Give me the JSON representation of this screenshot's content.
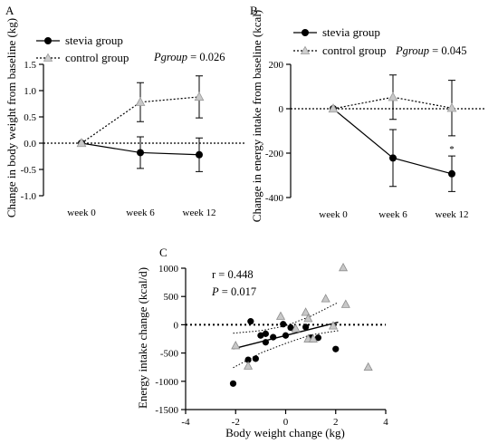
{
  "chart_data": [
    {
      "panel": "A",
      "type": "line",
      "ylabel": "Change in body weight from baseline (kg)",
      "xlabel": "",
      "categories": [
        "week 0",
        "week 6",
        "week 12"
      ],
      "ylim": [
        -1.0,
        1.5
      ],
      "yticks": [
        "-1.0",
        "-0.5",
        "0.0",
        "0.5",
        "1.0",
        "1.5"
      ],
      "yticks_num": [
        -1.0,
        -0.5,
        0.0,
        0.5,
        1.0,
        1.5
      ],
      "reference_line": 0,
      "stat": {
        "prefix": "P",
        "italic": "group",
        "suffix": " = 0.026"
      },
      "legend_position": "top-left",
      "series": [
        {
          "name": "stevia group",
          "marker": "circle",
          "color": "#000000",
          "line": "solid",
          "values": [
            0.0,
            -0.18,
            -0.22
          ],
          "err": [
            0,
            0.3,
            0.32
          ],
          "starred": [
            false,
            false,
            false
          ]
        },
        {
          "name": "control group",
          "marker": "triangle",
          "color": "#c8c8c8",
          "line": "dotted",
          "values": [
            0.0,
            0.78,
            0.88
          ],
          "err": [
            0,
            0.37,
            0.4
          ],
          "starred": [
            false,
            false,
            false
          ]
        }
      ]
    },
    {
      "panel": "B",
      "type": "line",
      "ylabel": "Change in energy intake from baseline (kcal)",
      "xlabel": "",
      "categories": [
        "week 0",
        "week 6",
        "week 12"
      ],
      "ylim": [
        -400,
        200
      ],
      "yticks": [
        "-400",
        "-200",
        "0",
        "200"
      ],
      "yticks_num": [
        -400,
        -200,
        0,
        200
      ],
      "reference_line": 0,
      "stat": {
        "prefix": "P",
        "italic": "group",
        "suffix": " = 0.045"
      },
      "legend_position": "top-left",
      "series": [
        {
          "name": "stevia group",
          "marker": "circle",
          "color": "#000000",
          "line": "solid",
          "values": [
            0,
            -222,
            -293
          ],
          "err": [
            0,
            128,
            80
          ],
          "starred": [
            false,
            false,
            true
          ]
        },
        {
          "name": "control group",
          "marker": "triangle",
          "color": "#c8c8c8",
          "line": "dotted",
          "values": [
            0,
            52,
            3
          ],
          "err": [
            0,
            100,
            125
          ],
          "starred": [
            false,
            false,
            false
          ]
        }
      ]
    },
    {
      "panel": "C",
      "type": "scatter",
      "xlabel": "Body weight change (kg)",
      "ylabel": "Energy intake change (kcal/d)",
      "xlim": [
        -4,
        4
      ],
      "ylim": [
        -1500,
        1000
      ],
      "xticks": [
        "-4",
        "-2",
        "0",
        "2",
        "4"
      ],
      "xticks_num": [
        -4,
        -2,
        0,
        2,
        4
      ],
      "yticks": [
        "-1500",
        "-1000",
        "-500",
        "0",
        "500",
        "1000"
      ],
      "yticks_num": [
        -1500,
        -1000,
        -500,
        0,
        500,
        1000
      ],
      "reference_line": 0,
      "annotation_r": "r = 0.448",
      "annotation_p": {
        "italic": "P",
        "suffix": " = 0.017"
      },
      "regression": {
        "slope": 112,
        "intercept": -190,
        "x_range": [
          -2.1,
          2.1
        ]
      },
      "ci_band": {
        "upper": [
          [
            -2.1,
            -150
          ],
          [
            -1.0,
            -105
          ],
          [
            0.0,
            -20
          ],
          [
            1.0,
            150
          ],
          [
            2.1,
            395
          ]
        ],
        "lower": [
          [
            -2.1,
            -760
          ],
          [
            -1.0,
            -500
          ],
          [
            0.0,
            -330
          ],
          [
            1.0,
            -180
          ],
          [
            2.1,
            -105
          ]
        ]
      },
      "series": [
        {
          "name": "stevia",
          "marker": "circle",
          "color": "#000000",
          "points": [
            [
              -2.1,
              -1040
            ],
            [
              -1.5,
              -620
            ],
            [
              -1.4,
              60
            ],
            [
              -1.2,
              -600
            ],
            [
              -1.0,
              -190
            ],
            [
              -0.8,
              -160
            ],
            [
              -0.8,
              -310
            ],
            [
              -0.5,
              -220
            ],
            [
              -0.1,
              10
            ],
            [
              0.0,
              -190
            ],
            [
              0.2,
              -50
            ],
            [
              0.8,
              -40
            ],
            [
              1.0,
              -230
            ],
            [
              1.3,
              -230
            ],
            [
              2.0,
              -430
            ]
          ]
        },
        {
          "name": "control",
          "marker": "triangle",
          "color": "#c8c8c8",
          "points": [
            [
              -2.0,
              -370
            ],
            [
              -1.5,
              -730
            ],
            [
              -0.2,
              150
            ],
            [
              0.4,
              -70
            ],
            [
              0.8,
              220
            ],
            [
              0.9,
              110
            ],
            [
              0.9,
              -250
            ],
            [
              1.1,
              -250
            ],
            [
              1.6,
              460
            ],
            [
              1.9,
              -20
            ],
            [
              2.3,
              1010
            ],
            [
              2.4,
              360
            ],
            [
              3.3,
              -750
            ]
          ]
        }
      ]
    }
  ]
}
